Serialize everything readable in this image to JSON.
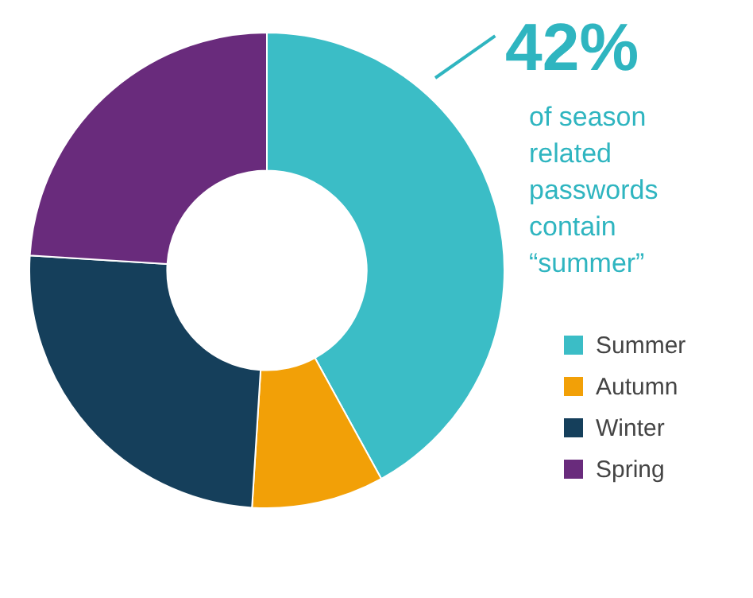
{
  "chart_data": {
    "type": "donut",
    "categories": [
      "Summer",
      "Autumn",
      "Winter",
      "Spring"
    ],
    "values": [
      42,
      9,
      25,
      24
    ],
    "colors": [
      "#3bbdc6",
      "#f2a007",
      "#153f5b",
      "#692b7c"
    ],
    "legend": "bottom right",
    "annotations": [
      "42%",
      "of season related passwords contain “summer”"
    ]
  }
}
